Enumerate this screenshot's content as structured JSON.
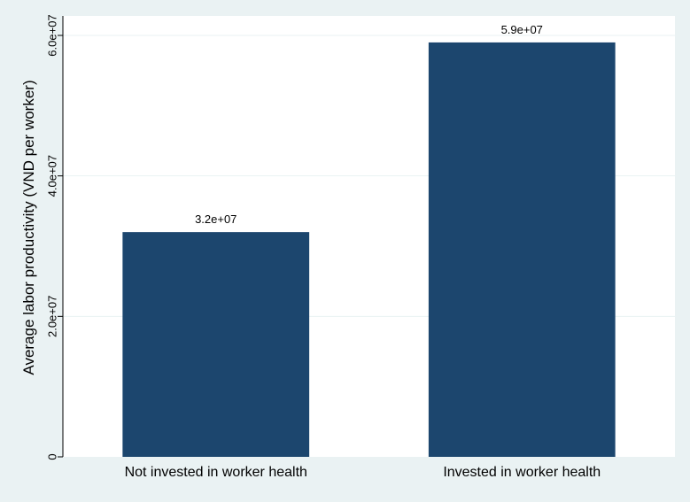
{
  "chart_data": {
    "type": "bar",
    "title": "",
    "xlabel": "",
    "ylabel": "Average labor productivity (VND per worker)",
    "categories": [
      "Not invested in worker health",
      "Invested in worker health"
    ],
    "values": [
      32000000,
      59000000
    ],
    "data_labels": [
      "3.2e+07",
      "5.9e+07"
    ],
    "ylim": [
      0,
      60000000
    ],
    "yticks": [
      0,
      20000000,
      40000000,
      60000000
    ],
    "ytick_labels": [
      "0",
      "2.0e+07",
      "4.0e+07",
      "6.0e+07"
    ],
    "grid": true,
    "legend": "none",
    "colors": {
      "bar": "#1c466e",
      "background": "#eaf2f3",
      "plot_background": "#ffffff",
      "grid": "#eaf2f3"
    }
  }
}
